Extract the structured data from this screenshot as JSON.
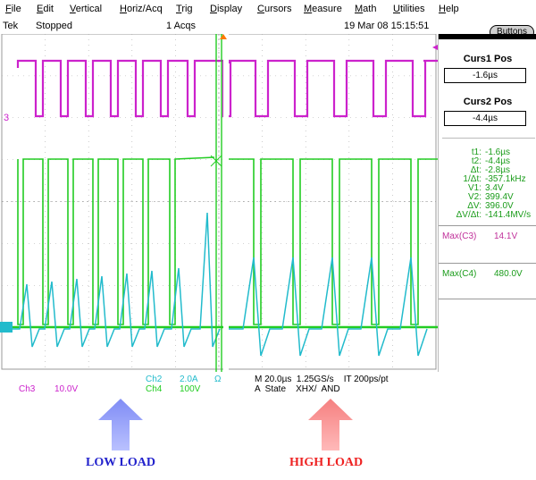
{
  "menu": {
    "items": [
      {
        "label": "File"
      },
      {
        "label": "Edit"
      },
      {
        "label": "Vertical"
      },
      {
        "label": "Horiz/Acq"
      },
      {
        "label": "Trig"
      },
      {
        "label": "Display"
      },
      {
        "label": "Cursors"
      },
      {
        "label": "Measure"
      },
      {
        "label": "Math"
      },
      {
        "label": "Utilities"
      },
      {
        "label": "Help"
      }
    ]
  },
  "status": {
    "brand": "Tek",
    "run_state": "Stopped",
    "acqs": "1 Acqs",
    "timestamp": "19 Mar 08 15:15:51"
  },
  "buttons_label": "Buttons",
  "cursors": {
    "c1_title": "Curs1 Pos",
    "c1_value": "-1.6µs",
    "c2_title": "Curs2 Pos",
    "c2_value": "-4.4µs"
  },
  "measurements": [
    {
      "key": "t1:",
      "value": "-1.6µs"
    },
    {
      "key": "t2:",
      "value": "-4.4µs"
    },
    {
      "key": "Δt:",
      "value": "-2.8µs"
    },
    {
      "key": "1/Δt:",
      "value": "-357.1kHz"
    },
    {
      "key": "V1:",
      "value": "3.4V"
    },
    {
      "key": "V2:",
      "value": "399.4V"
    },
    {
      "key": "ΔV:",
      "value": "396.0V"
    },
    {
      "key": "ΔV/Δt:",
      "value": "-141.4MV/s"
    }
  ],
  "max_readouts": [
    {
      "key": "Max(C3)",
      "value": "14.1V",
      "color": "#c0309a"
    },
    {
      "key": "Max(C4)",
      "value": "480.0V",
      "color": "#1a9c1a"
    }
  ],
  "channels": {
    "ch3_label": "Ch3",
    "ch3_scale": "10.0V",
    "ch2_label": "Ch2",
    "ch2_scale": "2.0A",
    "ch2_unit": "Ω",
    "ch4_label": "Ch4",
    "ch4_scale": "100V",
    "ch3_marker": "3",
    "ch3_color": "#cc22cc",
    "ch4_color": "#22cc22",
    "ch2_color": "#22bbcc"
  },
  "timebase": {
    "line1": "M 20.0µs  1.25GS/s    IT 200ps/pt",
    "line2": "A  State    XHX/  AND"
  },
  "loads": {
    "low": "LOW  LOAD",
    "high": "HIGH  LOAD",
    "low_color": "#2222cc",
    "high_color": "#ee2222"
  }
}
